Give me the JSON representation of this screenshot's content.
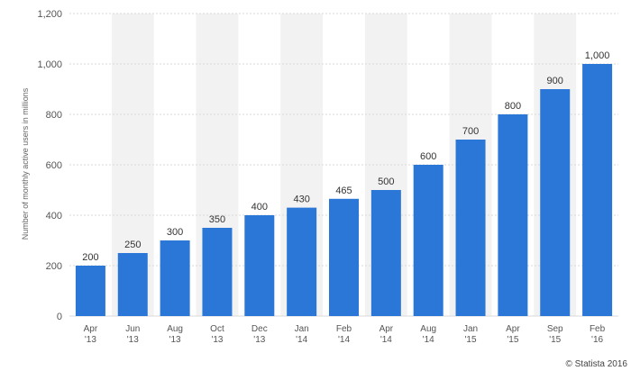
{
  "chart_data": {
    "type": "bar",
    "title": "",
    "xlabel": "",
    "ylabel": "Number of monthly active users in millions",
    "categories": [
      [
        "Apr",
        "'13"
      ],
      [
        "Jun",
        "'13"
      ],
      [
        "Aug",
        "'13"
      ],
      [
        "Oct",
        "'13"
      ],
      [
        "Dec",
        "'13"
      ],
      [
        "Jan",
        "'14"
      ],
      [
        "Feb",
        "'14"
      ],
      [
        "Apr",
        "'14"
      ],
      [
        "Aug",
        "'14"
      ],
      [
        "Jan",
        "'15"
      ],
      [
        "Apr",
        "'15"
      ],
      [
        "Sep",
        "'15"
      ],
      [
        "Feb",
        "'16"
      ]
    ],
    "values": [
      200,
      250,
      300,
      350,
      400,
      430,
      465,
      500,
      600,
      700,
      800,
      900,
      1000
    ],
    "value_labels": [
      "200",
      "250",
      "300",
      "350",
      "400",
      "430",
      "465",
      "500",
      "600",
      "700",
      "800",
      "900",
      "1,000"
    ],
    "ylim": [
      0,
      1200
    ],
    "yticks": [
      0,
      200,
      400,
      600,
      800,
      1000,
      1200
    ],
    "ytick_labels": [
      "0",
      "200",
      "400",
      "600",
      "800",
      "1,000",
      "1,200"
    ],
    "grid": true,
    "legend": "none",
    "bar_color": "#2a77d8",
    "band_color": "#f2f2f2",
    "grid_color": "#d9d9d9"
  },
  "credit": "© Statista 2016"
}
